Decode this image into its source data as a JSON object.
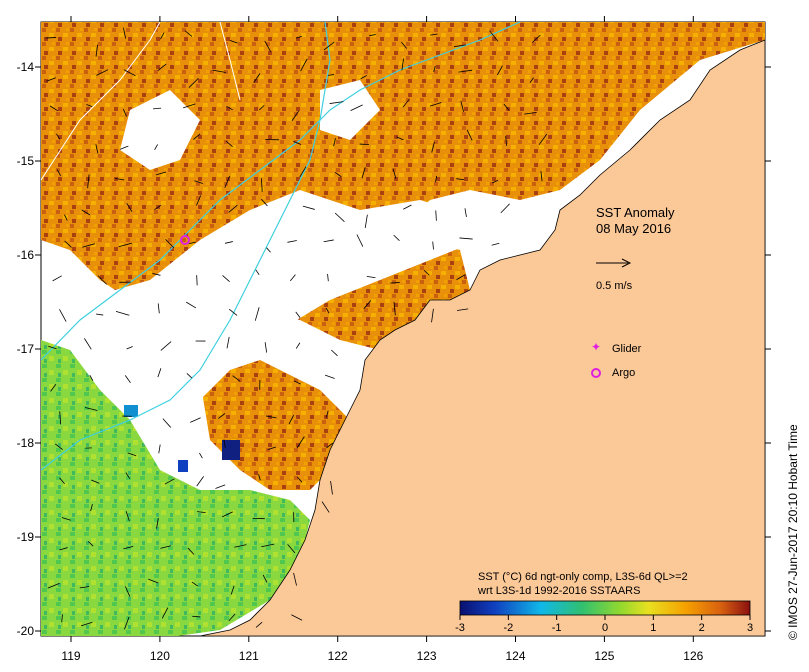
{
  "map": {
    "title_line1": "SST Anomaly",
    "title_line2": "08 May 2016",
    "scale_label": "0.5 m/s",
    "legend_glider": "Glider",
    "legend_argo": "Argo",
    "colorbar_caption_line1": "SST (°C) 6d ngt-only comp, L3S-6d QL>=2",
    "colorbar_caption_line2": "wrt L3S-1d 1992-2016 SSTAARS",
    "credit": "© IMOS 27-Jun-2017 20:10 Hobart Time",
    "x_ticks": [
      {
        "label": "119",
        "value": 119
      },
      {
        "label": "120",
        "value": 120
      },
      {
        "label": "121",
        "value": 121
      },
      {
        "label": "122",
        "value": 122
      },
      {
        "label": "123",
        "value": 123
      },
      {
        "label": "124",
        "value": 124
      },
      {
        "label": "125",
        "value": 125
      },
      {
        "label": "126",
        "value": 126
      }
    ],
    "y_ticks": [
      {
        "label": "-14",
        "value": -14
      },
      {
        "label": "-15",
        "value": -15
      },
      {
        "label": "-16",
        "value": -16
      },
      {
        "label": "-17",
        "value": -17
      },
      {
        "label": "-18",
        "value": -18
      },
      {
        "label": "-19",
        "value": -19
      },
      {
        "label": "-20",
        "value": -20
      }
    ],
    "colorbar_ticks": [
      {
        "label": "-3",
        "value": -3
      },
      {
        "label": "-2",
        "value": -2
      },
      {
        "label": "-1",
        "value": -1
      },
      {
        "label": "0",
        "value": 0
      },
      {
        "label": "1",
        "value": 1
      },
      {
        "label": "2",
        "value": 2
      },
      {
        "label": "3",
        "value": 3
      }
    ],
    "colors": {
      "land": "#fbc898",
      "ocean_missing": "#ffffff",
      "warm_dark": "#b03010",
      "warm": "#d87a10",
      "warm_light": "#f5a800",
      "neutral": "#e8d020",
      "cool_light": "#9ad840",
      "cool": "#3cc848",
      "cold": "#1090d0",
      "cold_dark": "#102080",
      "contour": "#40d0e0",
      "glider": "#e020e0",
      "argo": "#e020e0"
    }
  }
}
